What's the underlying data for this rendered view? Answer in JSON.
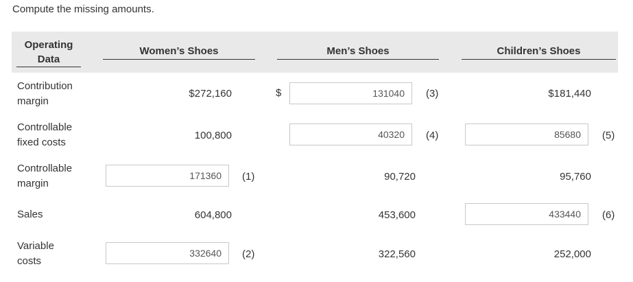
{
  "instruction": "Compute the missing amounts.",
  "headers": {
    "operating_line1": "Operating",
    "operating_line2": "Data",
    "women": "Women’s Shoes",
    "men": "Men’s Shoes",
    "children": "Children’s Shoes"
  },
  "rows": {
    "contribution": {
      "label_line1": "Contribution",
      "label_line2": "margin",
      "women": "$272,160",
      "men_dollar": "$",
      "men_input": "131040",
      "men_note": "(3)",
      "children": "$181,440"
    },
    "fixed": {
      "label_line1": "Controllable",
      "label_line2": "fixed costs",
      "women": "100,800",
      "men_input": "40320",
      "men_note": "(4)",
      "children_input": "85680",
      "children_note": "(5)"
    },
    "margin": {
      "label_line1": "Controllable",
      "label_line2": "margin",
      "women_input": "171360",
      "women_note": "(1)",
      "men": "90,720",
      "children": "95,760"
    },
    "sales": {
      "label": "Sales",
      "women": "604,800",
      "men": "453,600",
      "children_input": "433440",
      "children_note": "(6)"
    },
    "variable": {
      "label_line1": "Variable",
      "label_line2": "costs",
      "women_input": "332640",
      "women_note": "(2)",
      "men": "322,560",
      "children": "252,000"
    }
  }
}
